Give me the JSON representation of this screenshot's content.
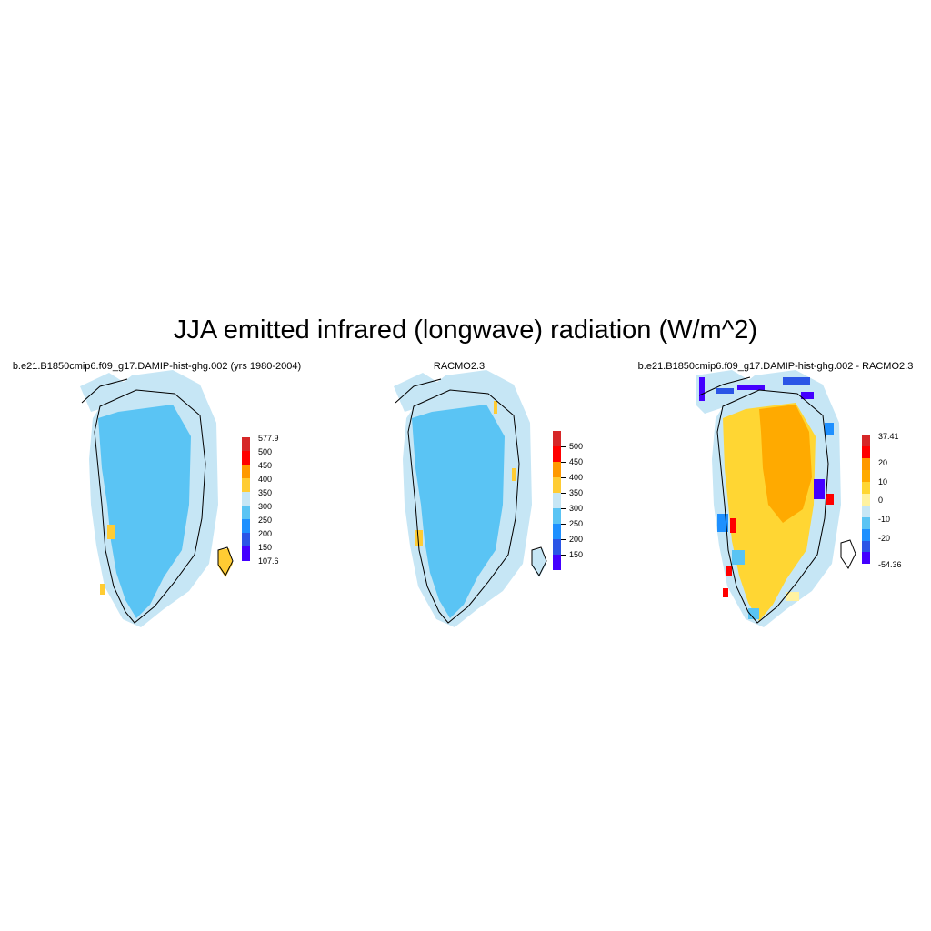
{
  "figure": {
    "title": "JJA emitted infrared (longwave) radiation (W/m^2)"
  },
  "colors": {
    "ocean": "#ffffff",
    "coast": "#000000",
    "margin": "#c6e6f5",
    "interior": "#5ac4f4"
  },
  "panels": [
    {
      "title": "b.e21.B1850cmip6.f09_g17.DAMIP-hist-ghg.002 (yrs 1980-2004)",
      "legend": {
        "labels": [
          "577.9",
          "500",
          "450",
          "400",
          "350",
          "300",
          "250",
          "200",
          "150",
          "107.6"
        ],
        "colors": [
          "#d62728",
          "#ff0000",
          "#ff9900",
          "#ffcc33",
          "#c6e6f5",
          "#5ac4f4",
          "#1e90ff",
          "#2b55e6",
          "#4400ff"
        ]
      }
    },
    {
      "title": "RACMO2.3",
      "legend": {
        "labels": [
          "500",
          "450",
          "400",
          "350",
          "300",
          "250",
          "200",
          "150"
        ],
        "colors": [
          "#d62728",
          "#ff0000",
          "#ff9900",
          "#ffcc33",
          "#c6e6f5",
          "#5ac4f4",
          "#1e90ff",
          "#2b55e6",
          "#4400ff"
        ]
      }
    },
    {
      "title": "b.e21.B1850cmip6.f09_g17.DAMIP-hist-ghg.002 - RACMO2.3",
      "legend": {
        "labels": [
          "37.41",
          "20",
          "10",
          "0",
          "-10",
          "-20",
          "-54.36"
        ],
        "colors": [
          "#d62728",
          "#ff0000",
          "#ff9900",
          "#ffaa00",
          "#ffd633",
          "#fff2a0",
          "#c6e6f5",
          "#5ac4f4",
          "#1e90ff",
          "#2b55e6",
          "#4400ff"
        ]
      }
    }
  ]
}
